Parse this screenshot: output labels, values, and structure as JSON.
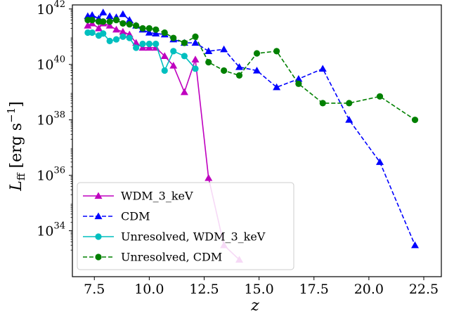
{
  "chart_data": {
    "type": "line",
    "xlabel": "z",
    "ylabel_main": "L",
    "ylabel_sub": "ff",
    "ylabel_unit_open": " [erg s",
    "ylabel_unit_exp": "−1",
    "ylabel_unit_close": "]",
    "yscale": "log",
    "xlim": [
      6.5,
      23.3
    ],
    "ylim": [
      2.2e+32,
      1.4e+42
    ],
    "x_ticks": [
      7.5,
      10.0,
      12.5,
      15.0,
      17.5,
      20.0,
      22.5
    ],
    "x_tick_labels": [
      "7.5",
      "10.0",
      "12.5",
      "15.0",
      "17.5",
      "20.0",
      "22.5"
    ],
    "y_ticks": [
      {
        "value": 1e+34,
        "base": "10",
        "exp": "34"
      },
      {
        "value": 1e+36,
        "base": "10",
        "exp": "36"
      },
      {
        "value": 1e+38,
        "base": "10",
        "exp": "38"
      },
      {
        "value": 1e+40,
        "base": "10",
        "exp": "40"
      },
      {
        "value": 1e+42,
        "base": "10",
        "exp": "42"
      }
    ],
    "grid": false,
    "legend_position": "lower-left",
    "series": [
      {
        "name": "WDM_3_keV",
        "color": "#bf00bf",
        "linestyle": "solid",
        "marker": "triangle",
        "x": [
          7.2,
          7.4,
          7.7,
          7.9,
          8.2,
          8.5,
          8.8,
          9.1,
          9.4,
          9.7,
          10.0,
          10.3,
          10.7,
          11.1,
          11.6,
          12.1,
          12.7,
          13.4,
          14.1
        ],
        "y": [
          2.5e+41,
          3e+41,
          2e+41,
          3e+41,
          2.5e+41,
          1.8e+41,
          1.5e+41,
          1.2e+41,
          6e+40,
          4e+40,
          4e+40,
          4e+40,
          2e+40,
          9e+39,
          1e+39,
          1.5e+40,
          8e+35,
          3e+33,
          9e+32
        ]
      },
      {
        "name": "CDM",
        "color": "#0000ff",
        "linestyle": "dashed",
        "marker": "triangle",
        "x": [
          7.2,
          7.4,
          7.7,
          7.9,
          8.2,
          8.5,
          8.8,
          9.1,
          9.4,
          9.7,
          10.0,
          10.3,
          10.7,
          11.1,
          11.6,
          12.1,
          12.7,
          13.4,
          14.1,
          14.9,
          15.8,
          16.8,
          17.9,
          19.1,
          20.5,
          22.1
        ],
        "y": [
          5.5e+41,
          6e+41,
          4.5e+41,
          7.5e+41,
          5.5e+41,
          5e+41,
          6.5e+41,
          4e+41,
          2.5e+41,
          1.8e+41,
          1.4e+41,
          1.3e+41,
          1.2e+41,
          8e+40,
          6e+40,
          6e+40,
          3e+40,
          3.5e+40,
          8e+39,
          6e+39,
          1.5e+39,
          3e+39,
          7e+39,
          1e+38,
          3e+36,
          3e+33
        ]
      },
      {
        "name": "Unresolved, WDM_3_keV",
        "color": "#00bfbf",
        "linestyle": "solid",
        "marker": "circle",
        "x": [
          7.2,
          7.4,
          7.7,
          7.9,
          8.2,
          8.5,
          8.8,
          9.1,
          9.4,
          9.7,
          10.0,
          10.3,
          10.7,
          11.1,
          11.6,
          12.1
        ],
        "y": [
          1.4e+41,
          1.4e+41,
          1.1e+41,
          1.3e+41,
          7e+40,
          8e+40,
          1e+41,
          9e+40,
          4e+40,
          5.5e+40,
          5.5e+40,
          5.5e+40,
          6e+39,
          3e+40,
          2e+40,
          7e+39
        ]
      },
      {
        "name": "Unresolved, CDM",
        "color": "#008000",
        "linestyle": "dashed",
        "marker": "circle",
        "x": [
          7.2,
          7.4,
          7.7,
          7.9,
          8.2,
          8.5,
          8.8,
          9.1,
          9.4,
          9.7,
          10.0,
          10.3,
          10.7,
          11.1,
          11.6,
          12.1,
          12.7,
          13.4,
          14.1,
          14.9,
          15.8,
          16.8,
          17.9,
          19.1,
          20.5,
          22.1
        ],
        "y": [
          4e+41,
          4e+41,
          3.5e+41,
          3.5e+41,
          3.5e+41,
          4e+41,
          3e+41,
          2.8e+41,
          2.5e+41,
          2e+41,
          2e+41,
          1.8e+41,
          1.4e+41,
          9e+40,
          6e+40,
          1e+41,
          1.2e+40,
          6e+39,
          4e+39,
          2.5e+40,
          3e+40,
          2e+39,
          4e+38,
          4e+38,
          7e+38,
          1e+38
        ]
      }
    ]
  }
}
